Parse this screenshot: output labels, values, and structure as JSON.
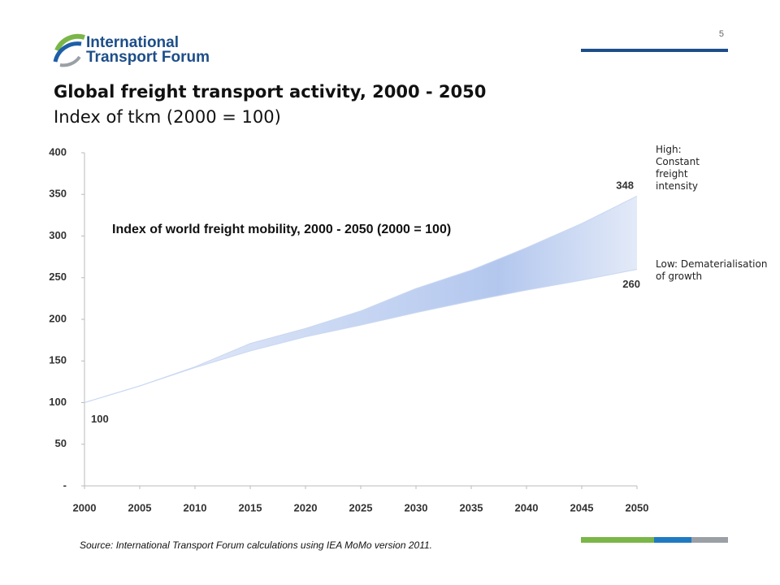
{
  "header": {
    "logo_line1": "International",
    "logo_line2": "Transport Forum",
    "page_number": "5",
    "title": "Global freight transport activity, 2000 - 2050",
    "subtitle": "Index of tkm (2000 = 100)"
  },
  "chart_data": {
    "type": "area",
    "title": "Index of world freight mobility, 2000 - 2050 (2000 = 100)",
    "x": [
      2000,
      2005,
      2010,
      2015,
      2020,
      2025,
      2030,
      2035,
      2040,
      2045,
      2050
    ],
    "series": [
      {
        "name": "High: Constant freight intensity",
        "color": "#c9d7f1",
        "values": [
          100,
          120,
          143,
          171,
          189,
          210,
          237,
          259,
          286,
          315,
          348
        ]
      },
      {
        "name": "Low: Dematerialisation of growth",
        "color": "#c9d7f1",
        "values": [
          100,
          120,
          142,
          162,
          179,
          193,
          208,
          222,
          235,
          247,
          260
        ]
      }
    ],
    "xlim": [
      2000,
      2050
    ],
    "xticks": [
      2000,
      2005,
      2010,
      2015,
      2020,
      2025,
      2030,
      2035,
      2040,
      2045,
      2050
    ],
    "ylim": [
      0,
      400
    ],
    "yticks": [
      {
        "value": 0,
        "label": "-"
      },
      50,
      100,
      150,
      200,
      250,
      300,
      350,
      400
    ],
    "grid": false
  },
  "footer": {
    "source": "Source: International Transport Forum calculations using IEA MoMo version 2011."
  }
}
